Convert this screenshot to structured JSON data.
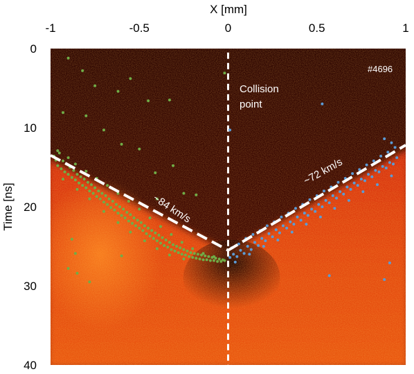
{
  "chart_data": {
    "type": "scatter",
    "xlabel": "X [mm]",
    "ylabel": "Time [ns]",
    "xlim": [
      -1,
      1
    ],
    "ylim": [
      0,
      40
    ],
    "y_inverted": true,
    "x_axis_position": "top",
    "grid": false,
    "x_ticks": [
      "-1",
      "-0.5",
      "0",
      "0.5",
      "1"
    ],
    "y_ticks": [
      "0",
      "10",
      "20",
      "30",
      "40"
    ],
    "background": "red/orange streak image, dark above the V-shaped front",
    "shot_label": "#4696",
    "annotations": {
      "collision_line1": "Collision",
      "collision_line2": "point",
      "left_speed": "~84 km/s",
      "right_speed": "~72 km/s"
    },
    "collision_point": {
      "x": 0.0,
      "t": 25.5
    },
    "fit_lines": [
      {
        "from": [
          -1.0,
          13.5
        ],
        "to": [
          0.0,
          25.5
        ],
        "style": "white dashed"
      },
      {
        "from": [
          0.0,
          25.5
        ],
        "to": [
          1.0,
          12.2
        ],
        "style": "white dashed"
      }
    ],
    "series": [
      {
        "color": "#70ad47",
        "points": [
          [
            -0.98,
            13.6
          ],
          [
            -0.97,
            14.1
          ],
          [
            -0.96,
            14.8
          ],
          [
            -0.95,
            13.2
          ],
          [
            -0.94,
            15.2
          ],
          [
            -0.93,
            14.2
          ],
          [
            -0.92,
            15.6
          ],
          [
            -0.91,
            14.6
          ],
          [
            -0.9,
            15.9
          ],
          [
            -0.89,
            15.0
          ],
          [
            -0.88,
            16.3
          ],
          [
            -0.87,
            15.4
          ],
          [
            -0.86,
            16.6
          ],
          [
            -0.85,
            15.9
          ],
          [
            -0.84,
            17.0
          ],
          [
            -0.83,
            16.2
          ],
          [
            -0.82,
            17.3
          ],
          [
            -0.81,
            16.5
          ],
          [
            -0.8,
            17.6
          ],
          [
            -0.79,
            16.9
          ],
          [
            -0.78,
            18.0
          ],
          [
            -0.77,
            17.2
          ],
          [
            -0.76,
            18.3
          ],
          [
            -0.75,
            17.6
          ],
          [
            -0.74,
            18.7
          ],
          [
            -0.73,
            18.0
          ],
          [
            -0.72,
            19.0
          ],
          [
            -0.71,
            18.3
          ],
          [
            -0.7,
            19.4
          ],
          [
            -0.69,
            18.6
          ],
          [
            -0.68,
            19.7
          ],
          [
            -0.67,
            19.0
          ],
          [
            -0.66,
            20.1
          ],
          [
            -0.65,
            19.3
          ],
          [
            -0.64,
            20.4
          ],
          [
            -0.63,
            19.7
          ],
          [
            -0.62,
            20.8
          ],
          [
            -0.61,
            20.0
          ],
          [
            -0.6,
            21.1
          ],
          [
            -0.59,
            20.3
          ],
          [
            -0.58,
            21.4
          ],
          [
            -0.57,
            20.7
          ],
          [
            -0.56,
            21.8
          ],
          [
            -0.55,
            21.0
          ],
          [
            -0.54,
            22.1
          ],
          [
            -0.53,
            21.4
          ],
          [
            -0.52,
            22.4
          ],
          [
            -0.51,
            21.7
          ],
          [
            -0.5,
            22.7
          ],
          [
            -0.49,
            22.0
          ],
          [
            -0.48,
            23.0
          ],
          [
            -0.47,
            22.4
          ],
          [
            -0.46,
            23.4
          ],
          [
            -0.45,
            22.7
          ],
          [
            -0.44,
            23.7
          ],
          [
            -0.43,
            23.0
          ],
          [
            -0.42,
            24.0
          ],
          [
            -0.41,
            23.3
          ],
          [
            -0.4,
            24.3
          ],
          [
            -0.39,
            23.6
          ],
          [
            -0.38,
            24.6
          ],
          [
            -0.37,
            23.9
          ],
          [
            -0.36,
            24.9
          ],
          [
            -0.35,
            24.2
          ],
          [
            -0.34,
            25.1
          ],
          [
            -0.33,
            24.5
          ],
          [
            -0.32,
            25.4
          ],
          [
            -0.31,
            24.8
          ],
          [
            -0.3,
            25.6
          ],
          [
            -0.29,
            25.0
          ],
          [
            -0.28,
            25.8
          ],
          [
            -0.27,
            25.2
          ],
          [
            -0.26,
            26.0
          ],
          [
            -0.25,
            25.4
          ],
          [
            -0.24,
            26.1
          ],
          [
            -0.23,
            25.6
          ],
          [
            -0.22,
            26.3
          ],
          [
            -0.21,
            25.8
          ],
          [
            -0.2,
            26.4
          ],
          [
            -0.19,
            25.9
          ],
          [
            -0.18,
            26.5
          ],
          [
            -0.17,
            26.0
          ],
          [
            -0.16,
            26.6
          ],
          [
            -0.15,
            26.1
          ],
          [
            -0.14,
            26.7
          ],
          [
            -0.13,
            26.2
          ],
          [
            -0.12,
            26.7
          ],
          [
            -0.11,
            26.3
          ],
          [
            -0.1,
            26.8
          ],
          [
            -0.09,
            26.4
          ],
          [
            -0.08,
            26.8
          ],
          [
            -0.07,
            26.5
          ],
          [
            -0.06,
            26.9
          ],
          [
            -0.05,
            26.6
          ],
          [
            -0.04,
            26.9
          ],
          [
            -0.03,
            26.7
          ],
          [
            -0.02,
            26.8
          ],
          [
            -0.96,
            12.9
          ],
          [
            -0.9,
            13.8
          ],
          [
            -0.86,
            14.6
          ],
          [
            -0.8,
            15.5
          ],
          [
            -0.74,
            16.4
          ],
          [
            -0.68,
            17.3
          ],
          [
            -0.62,
            18.3
          ],
          [
            -0.56,
            19.3
          ],
          [
            -0.5,
            20.3
          ],
          [
            -0.44,
            21.4
          ],
          [
            -0.38,
            22.5
          ],
          [
            -0.32,
            23.5
          ],
          [
            -0.26,
            24.5
          ],
          [
            -0.2,
            25.3
          ],
          [
            -0.14,
            25.9
          ],
          [
            -0.08,
            26.3
          ],
          [
            -0.93,
            16.5
          ],
          [
            -0.85,
            17.8
          ],
          [
            -0.78,
            19.0
          ],
          [
            -0.7,
            20.6
          ],
          [
            -0.62,
            22.0
          ],
          [
            -0.55,
            23.2
          ],
          [
            -0.47,
            24.3
          ],
          [
            -0.4,
            25.3
          ],
          [
            -0.33,
            26.1
          ],
          [
            -0.25,
            26.6
          ],
          [
            -0.9,
            1.2
          ],
          [
            -0.82,
            2.8
          ],
          [
            -0.62,
            5.4
          ],
          [
            -0.55,
            3.8
          ],
          [
            -0.45,
            6.6
          ],
          [
            -0.33,
            6.5
          ],
          [
            -0.02,
            3.1
          ],
          [
            -0.8,
            8.5
          ],
          [
            -0.7,
            10.3
          ],
          [
            -0.5,
            12.7
          ],
          [
            -0.41,
            15.7
          ],
          [
            -0.31,
            14.8
          ],
          [
            -0.18,
            18.5
          ],
          [
            -0.25,
            18.3
          ],
          [
            -0.4,
            19.0
          ],
          [
            -0.88,
            24.1
          ],
          [
            -0.9,
            27.8
          ],
          [
            -0.85,
            28.4
          ],
          [
            -0.78,
            29.5
          ],
          [
            -0.6,
            26.2
          ],
          [
            -0.86,
            25.9
          ],
          [
            -0.93,
            8.1
          ],
          [
            -0.75,
            4.7
          ],
          [
            -0.6,
            12.1
          ]
        ]
      },
      {
        "color": "#5b9bd5",
        "points": [
          [
            0.01,
            26.4
          ],
          [
            0.03,
            26.0
          ],
          [
            0.05,
            26.3
          ],
          [
            0.07,
            25.5
          ],
          [
            0.09,
            25.9
          ],
          [
            0.11,
            25.0
          ],
          [
            0.13,
            25.4
          ],
          [
            0.15,
            24.5
          ],
          [
            0.17,
            24.9
          ],
          [
            0.19,
            24.0
          ],
          [
            0.21,
            24.3
          ],
          [
            0.23,
            23.4
          ],
          [
            0.25,
            23.8
          ],
          [
            0.27,
            22.9
          ],
          [
            0.29,
            23.3
          ],
          [
            0.31,
            22.4
          ],
          [
            0.33,
            22.7
          ],
          [
            0.35,
            21.9
          ],
          [
            0.37,
            22.2
          ],
          [
            0.39,
            21.3
          ],
          [
            0.41,
            21.7
          ],
          [
            0.43,
            20.8
          ],
          [
            0.45,
            21.1
          ],
          [
            0.47,
            20.3
          ],
          [
            0.49,
            20.6
          ],
          [
            0.51,
            19.7
          ],
          [
            0.53,
            20.0
          ],
          [
            0.55,
            19.2
          ],
          [
            0.57,
            19.5
          ],
          [
            0.59,
            18.6
          ],
          [
            0.61,
            18.9
          ],
          [
            0.63,
            18.1
          ],
          [
            0.65,
            18.4
          ],
          [
            0.67,
            17.5
          ],
          [
            0.69,
            17.8
          ],
          [
            0.71,
            17.0
          ],
          [
            0.73,
            17.3
          ],
          [
            0.75,
            16.5
          ],
          [
            0.77,
            16.7
          ],
          [
            0.79,
            15.9
          ],
          [
            0.81,
            16.2
          ],
          [
            0.83,
            15.4
          ],
          [
            0.85,
            15.6
          ],
          [
            0.87,
            14.9
          ],
          [
            0.89,
            15.1
          ],
          [
            0.91,
            14.4
          ],
          [
            0.93,
            14.6
          ],
          [
            0.95,
            13.8
          ],
          [
            0.02,
            25.2
          ],
          [
            0.06,
            24.7
          ],
          [
            0.1,
            24.0
          ],
          [
            0.14,
            23.5
          ],
          [
            0.18,
            23.0
          ],
          [
            0.22,
            22.4
          ],
          [
            0.26,
            21.9
          ],
          [
            0.3,
            21.3
          ],
          [
            0.34,
            20.8
          ],
          [
            0.38,
            20.2
          ],
          [
            0.42,
            19.7
          ],
          [
            0.46,
            19.1
          ],
          [
            0.5,
            18.6
          ],
          [
            0.54,
            18.0
          ],
          [
            0.58,
            17.5
          ],
          [
            0.62,
            16.9
          ],
          [
            0.66,
            16.4
          ],
          [
            0.7,
            15.8
          ],
          [
            0.74,
            15.3
          ],
          [
            0.78,
            14.7
          ],
          [
            0.82,
            14.2
          ],
          [
            0.86,
            13.6
          ],
          [
            0.9,
            13.1
          ],
          [
            0.94,
            12.5
          ],
          [
            0.88,
            11.4
          ],
          [
            0.92,
            11.9
          ],
          [
            0.04,
            27.0
          ],
          [
            0.12,
            26.0
          ],
          [
            0.2,
            25.0
          ],
          [
            0.28,
            24.2
          ],
          [
            0.36,
            23.2
          ],
          [
            0.44,
            22.2
          ],
          [
            0.52,
            21.3
          ],
          [
            0.6,
            20.2
          ],
          [
            0.68,
            19.2
          ],
          [
            0.76,
            18.1
          ],
          [
            0.84,
            17.2
          ],
          [
            0.92,
            16.1
          ],
          [
            0.53,
            7.0
          ],
          [
            0.01,
            10.3
          ],
          [
            0.57,
            28.7
          ],
          [
            0.88,
            29.2
          ],
          [
            0.91,
            27.1
          ]
        ]
      }
    ]
  }
}
